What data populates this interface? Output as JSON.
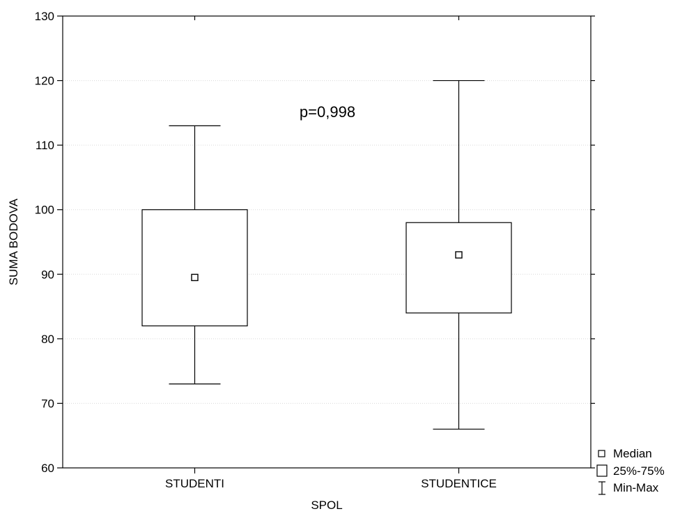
{
  "chart_data": {
    "type": "boxplot",
    "xlabel": "SPOL",
    "ylabel": "SUMA BODOVA",
    "ylim": [
      60,
      130
    ],
    "yticks": [
      60,
      70,
      80,
      90,
      100,
      110,
      120,
      130
    ],
    "grid": true,
    "annotation": "p=0,998",
    "legend_position": "bottom-right",
    "legend": {
      "median": "Median",
      "box": "25%-75%",
      "whisker": "Min-Max"
    },
    "categories": [
      "STUDENTI",
      "STUDENTICE"
    ],
    "boxes": [
      {
        "category": "STUDENTI",
        "min": 73,
        "q1": 82,
        "median": 89.5,
        "q3": 100,
        "max": 113
      },
      {
        "category": "STUDENTICE",
        "min": 66,
        "q1": 84,
        "median": 93,
        "q3": 98,
        "max": 120
      }
    ]
  }
}
